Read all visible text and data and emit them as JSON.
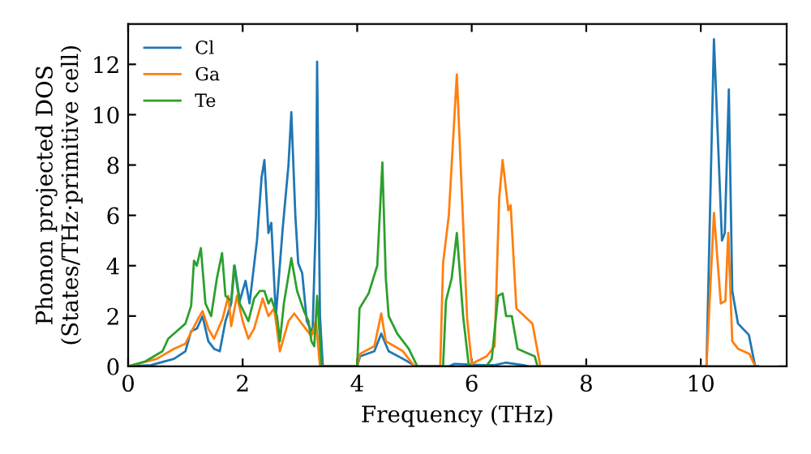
{
  "chart_data": {
    "type": "line",
    "xlabel": "Frequency (THz)",
    "ylabel": "Phonon projected DOS\n(States/THz·primitive cell)",
    "xlim": [
      0,
      11.5
    ],
    "ylim": [
      0,
      13.6
    ],
    "xticks": [
      0,
      2,
      4,
      6,
      8,
      10
    ],
    "yticks": [
      0,
      2,
      4,
      6,
      8,
      10,
      12
    ],
    "grid": false,
    "legend": "top left",
    "marker": "none",
    "line_style": "solid",
    "series": [
      {
        "name": "Cl",
        "color": "#1f77b4",
        "x": [
          0,
          0.4,
          0.8,
          1.0,
          1.1,
          1.2,
          1.3,
          1.4,
          1.5,
          1.6,
          1.7,
          1.8,
          1.86,
          1.95,
          2.05,
          2.12,
          2.25,
          2.33,
          2.38,
          2.45,
          2.5,
          2.58,
          2.7,
          2.8,
          2.85,
          2.92,
          2.97,
          3.04,
          3.12,
          3.22,
          3.28,
          3.3,
          3.35,
          3.4,
          4.0,
          4.05,
          4.3,
          4.42,
          4.55,
          4.8,
          4.95,
          5.0,
          5.6,
          5.7,
          6.2,
          6.4,
          6.6,
          6.9,
          7.0,
          10.1,
          10.23,
          10.37,
          10.42,
          10.49,
          10.55,
          10.65,
          10.84,
          10.95,
          11.0
        ],
        "values": [
          0,
          0.05,
          0.3,
          0.6,
          1.4,
          1.5,
          2.0,
          1.0,
          0.7,
          0.6,
          1.8,
          2.5,
          4.0,
          2.6,
          3.4,
          2.5,
          5.0,
          7.5,
          8.2,
          5.3,
          5.7,
          2.0,
          5.5,
          8.0,
          10.1,
          6.0,
          4.1,
          3.7,
          1.8,
          1.3,
          6.0,
          12.1,
          2.0,
          0,
          0,
          0.4,
          0.6,
          1.3,
          0.6,
          0.3,
          0.1,
          0,
          0,
          0.1,
          0.05,
          0.05,
          0.15,
          0.05,
          0,
          0,
          13.0,
          5.0,
          5.3,
          11.0,
          3.0,
          1.7,
          1.25,
          0,
          0
        ]
      },
      {
        "name": "Ga",
        "color": "#ff7f0e",
        "x": [
          0,
          0.5,
          0.8,
          1.0,
          1.2,
          1.3,
          1.4,
          1.5,
          1.65,
          1.75,
          1.8,
          1.9,
          2.0,
          2.1,
          2.2,
          2.35,
          2.45,
          2.55,
          2.65,
          2.8,
          2.9,
          3.0,
          3.1,
          3.2,
          3.28,
          3.35,
          4.0,
          4.05,
          4.3,
          4.42,
          4.5,
          4.8,
          5.0,
          5.45,
          5.5,
          5.6,
          5.74,
          5.92,
          6.0,
          6.26,
          6.4,
          6.48,
          6.54,
          6.64,
          6.68,
          6.78,
          7.06,
          7.2,
          10.1,
          10.23,
          10.35,
          10.43,
          10.48,
          10.55,
          10.65,
          10.85,
          10.95,
          11.0
        ],
        "values": [
          0,
          0.3,
          0.7,
          0.9,
          1.8,
          2.2,
          1.5,
          1.1,
          1.9,
          2.8,
          1.6,
          2.8,
          1.8,
          1.1,
          1.5,
          2.7,
          2.0,
          2.3,
          0.6,
          1.8,
          2.1,
          1.8,
          1.5,
          1.2,
          1.8,
          0,
          0,
          0.5,
          0.8,
          2.1,
          1.0,
          0.6,
          0,
          0,
          4.1,
          6.0,
          11.6,
          1.9,
          0.1,
          0.4,
          0.8,
          6.7,
          8.2,
          6.2,
          6.4,
          2.3,
          1.7,
          0,
          0,
          6.1,
          2.5,
          2.6,
          5.3,
          1.0,
          0.7,
          0.5,
          0,
          0
        ]
      },
      {
        "name": "Te",
        "color": "#2ca02c",
        "x": [
          0,
          0.3,
          0.6,
          0.7,
          0.85,
          1.0,
          1.1,
          1.15,
          1.2,
          1.27,
          1.35,
          1.45,
          1.55,
          1.64,
          1.7,
          1.8,
          1.85,
          1.95,
          2.1,
          2.2,
          2.3,
          2.38,
          2.45,
          2.5,
          2.6,
          2.65,
          2.72,
          2.85,
          2.95,
          3.07,
          3.15,
          3.2,
          3.25,
          3.3,
          3.38,
          4.0,
          4.04,
          4.2,
          4.35,
          4.44,
          4.5,
          4.55,
          4.7,
          4.9,
          5.05,
          5.5,
          5.55,
          5.65,
          5.74,
          5.85,
          5.95,
          6.25,
          6.35,
          6.46,
          6.54,
          6.6,
          6.7,
          6.8,
          7.0,
          7.1,
          7.15,
          11.0
        ],
        "values": [
          0,
          0.2,
          0.6,
          1.1,
          1.4,
          1.7,
          2.4,
          4.2,
          4.0,
          4.7,
          2.5,
          2.0,
          3.5,
          4.5,
          2.8,
          2.6,
          4.0,
          2.5,
          1.8,
          2.7,
          3.0,
          3.0,
          2.5,
          2.7,
          2.0,
          1.0,
          2.5,
          4.3,
          3.0,
          2.2,
          1.8,
          1.0,
          0.8,
          2.8,
          0,
          0,
          2.3,
          2.9,
          4.0,
          8.1,
          3.5,
          2.0,
          1.3,
          0.7,
          0,
          0,
          2.6,
          3.5,
          5.3,
          2.0,
          0,
          0,
          0.3,
          2.8,
          2.9,
          2.0,
          2.0,
          0.7,
          0.5,
          0.4,
          0,
          0
        ]
      }
    ]
  }
}
